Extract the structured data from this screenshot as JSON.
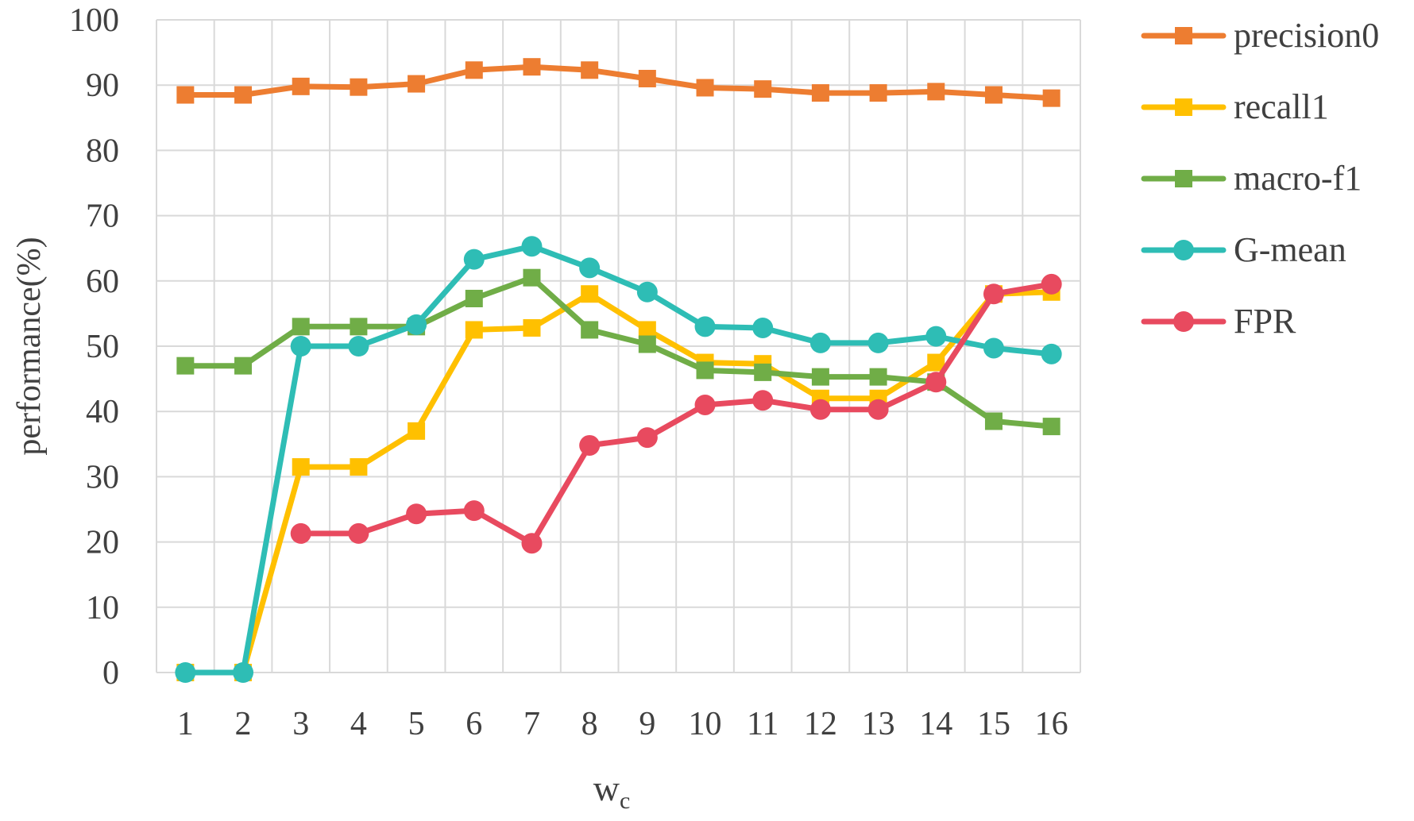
{
  "chart_data": {
    "type": "line",
    "title": "",
    "xlabel": "w",
    "xlabel_subscript": "c",
    "ylabel": "performance(%)",
    "ylim": [
      0,
      100
    ],
    "yticks": [
      0,
      10,
      20,
      30,
      40,
      50,
      60,
      70,
      80,
      90,
      100
    ],
    "categories": [
      "1",
      "2",
      "3",
      "4",
      "5",
      "6",
      "7",
      "8",
      "9",
      "10",
      "11",
      "12",
      "13",
      "14",
      "15",
      "16"
    ],
    "grid": true,
    "legend_position": "right",
    "series": [
      {
        "name": "precision0",
        "color": "#ED7D31",
        "marker": "square",
        "values": [
          88.5,
          88.5,
          89.8,
          89.7,
          90.2,
          92.3,
          92.8,
          92.3,
          91.0,
          89.6,
          89.4,
          88.8,
          88.8,
          89.0,
          88.5,
          88.0
        ]
      },
      {
        "name": "recall1",
        "color": "#FFC000",
        "marker": "square",
        "values": [
          0,
          0,
          31.5,
          31.5,
          37.0,
          52.5,
          52.8,
          58.0,
          52.5,
          47.5,
          47.3,
          42.0,
          42.0,
          47.5,
          58.0,
          58.3
        ]
      },
      {
        "name": "macro-f1",
        "color": "#70AD47",
        "marker": "square",
        "values": [
          47.0,
          47.0,
          53.0,
          53.0,
          53.0,
          57.3,
          60.5,
          52.5,
          50.3,
          46.3,
          46.0,
          45.3,
          45.3,
          44.5,
          38.5,
          37.7
        ]
      },
      {
        "name": "G-mean",
        "color": "#2EBDB5",
        "marker": "circle",
        "values": [
          0,
          0,
          50.0,
          50.0,
          53.3,
          63.3,
          65.3,
          62.0,
          58.3,
          53.0,
          52.8,
          50.5,
          50.5,
          51.5,
          49.7,
          48.8
        ]
      },
      {
        "name": "FPR",
        "color": "#E84A5F",
        "marker": "circle",
        "values": [
          null,
          null,
          21.3,
          21.3,
          24.3,
          24.8,
          19.8,
          34.8,
          36.0,
          41.0,
          41.7,
          40.3,
          40.3,
          44.5,
          58.0,
          59.5
        ]
      }
    ]
  }
}
